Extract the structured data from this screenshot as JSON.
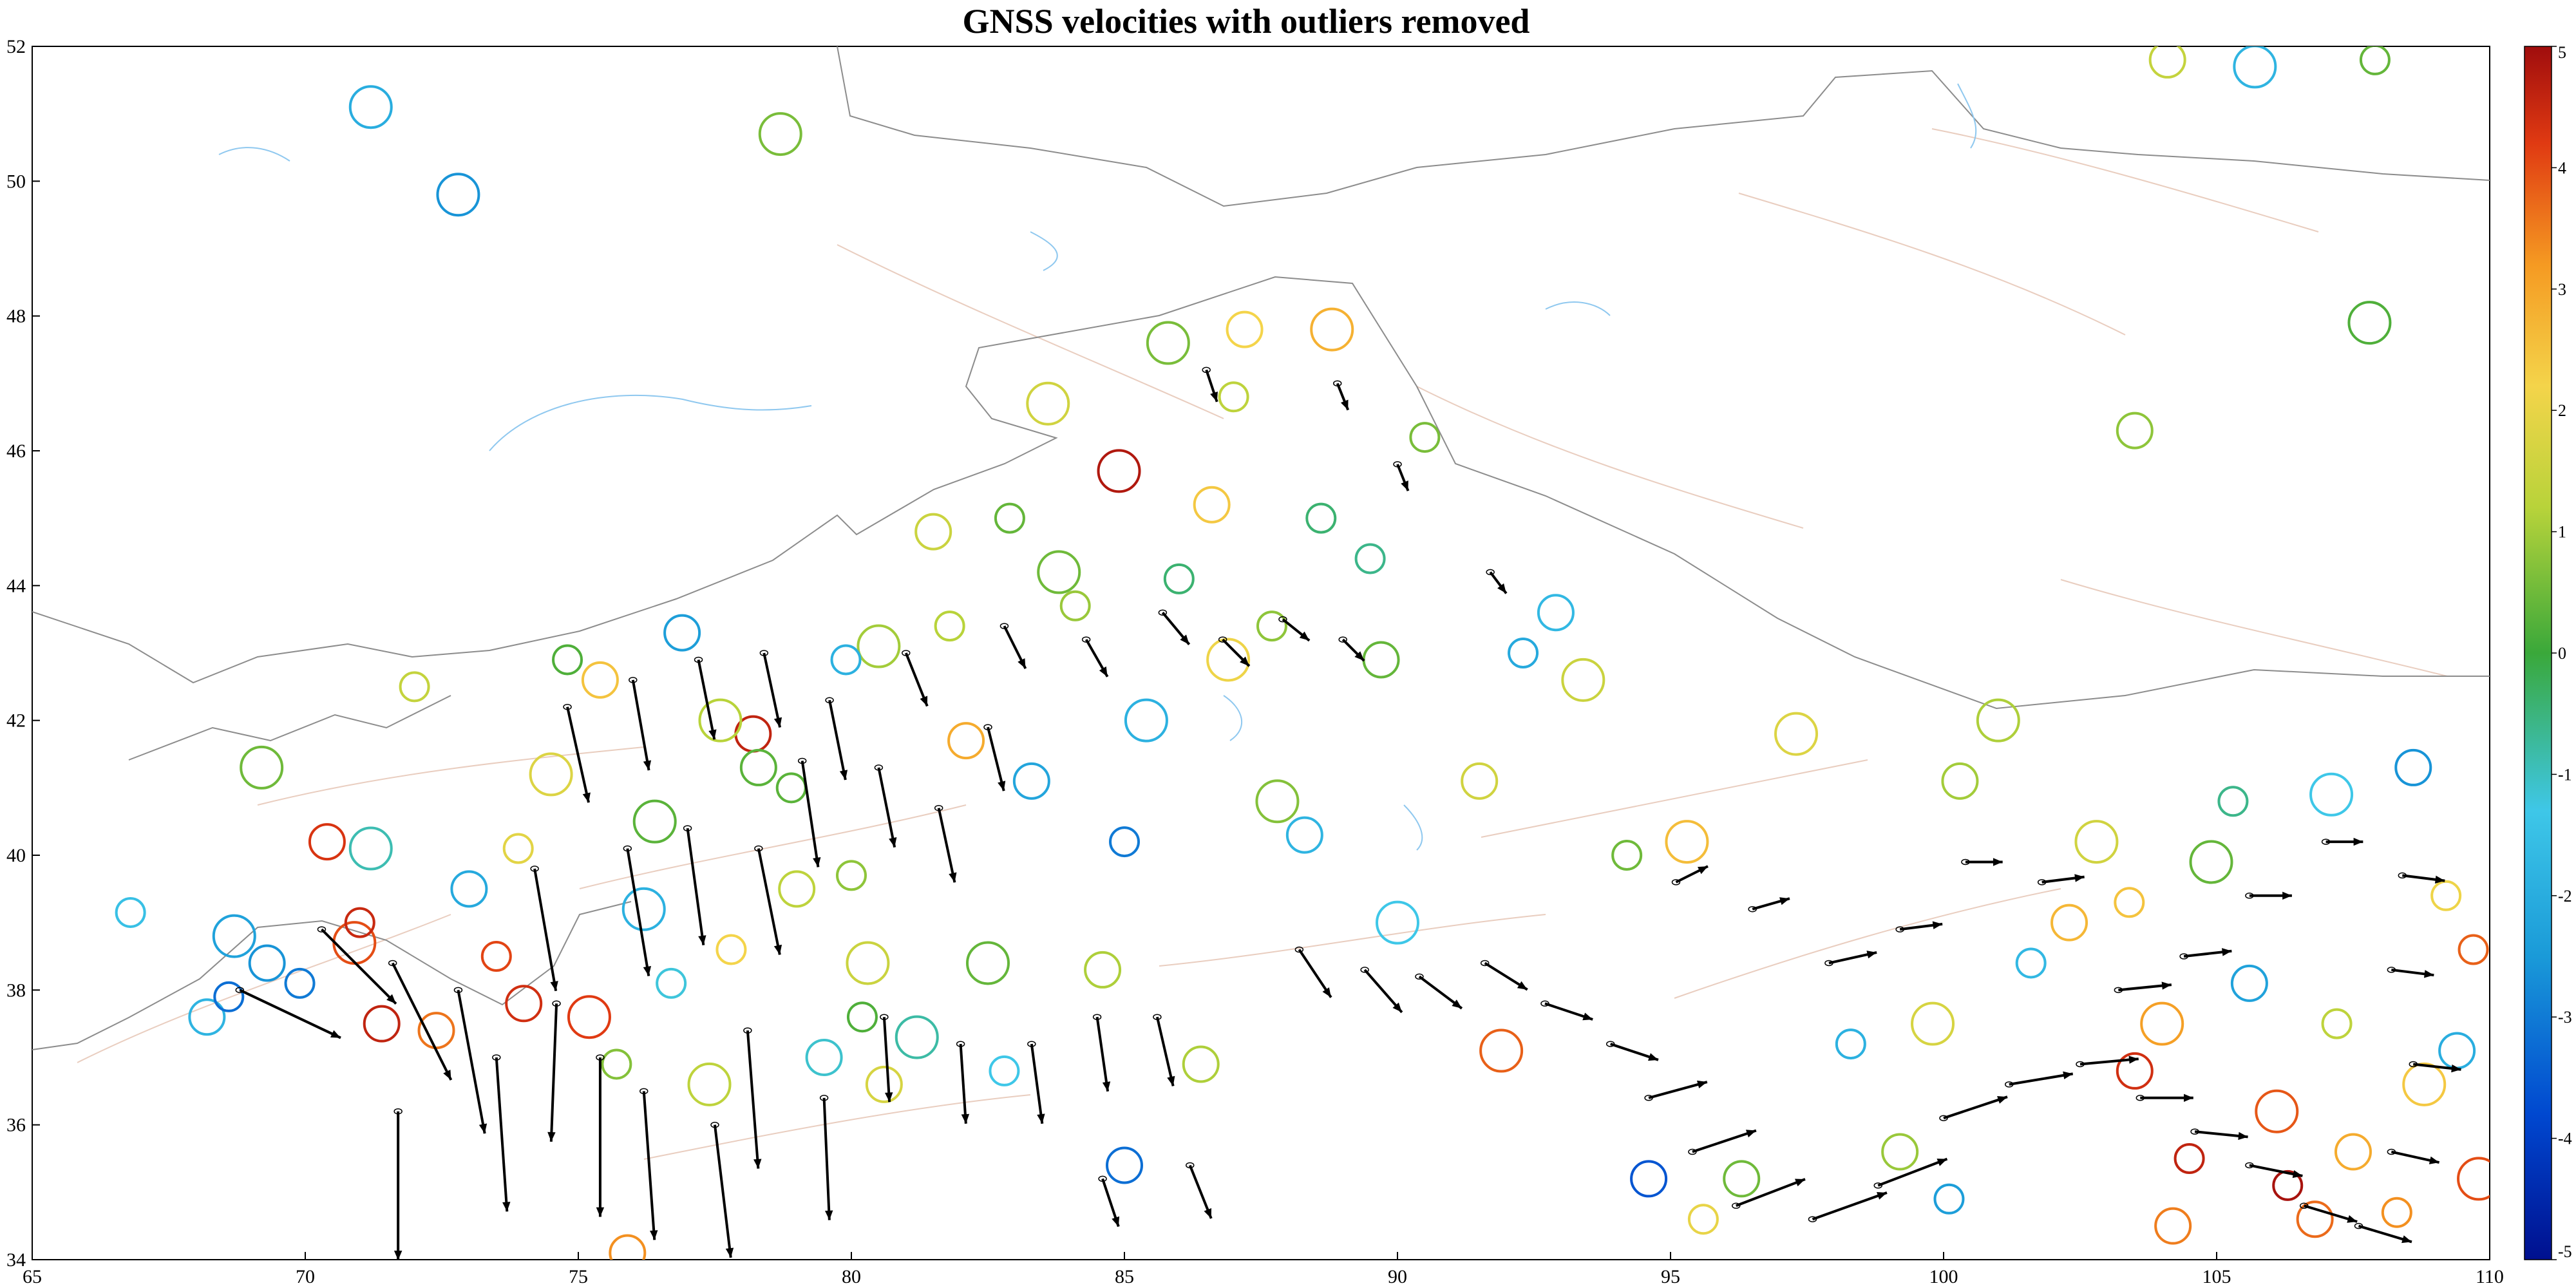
{
  "title": "GNSS velocities with outliers removed",
  "map": {
    "lon_range": [
      65,
      110
    ],
    "lat_range": [
      34,
      52
    ],
    "x_ticks": [
      "65",
      "70",
      "75",
      "80",
      "85",
      "90",
      "95",
      "100",
      "105",
      "110"
    ],
    "y_ticks": [
      "34",
      "36",
      "38",
      "40",
      "42",
      "44",
      "46",
      "48",
      "50",
      "52"
    ],
    "colors": {
      "border": "#8c8c8c",
      "water": "#8fc8ef",
      "fault": "#e7c8b8",
      "arrow": "#000000"
    }
  },
  "colorbar": {
    "range": [
      -5,
      5
    ],
    "labels": [
      "5",
      "4",
      "3",
      "2",
      "1",
      "0",
      "-1",
      "-2",
      "-3",
      "-4",
      "-5"
    ],
    "colormap": "jet-like: dark blue (-5) → cyan → green (0) → yellow → orange → dark red (5)"
  },
  "chart_data": {
    "type": "scatter",
    "title": "GNSS velocities with outliers removed",
    "xlim": [
      65,
      110
    ],
    "ylim": [
      34,
      52
    ],
    "colorbar_range": [
      -5,
      5
    ],
    "stations": [
      {
        "lon": 66.8,
        "lat": 39.15,
        "v": -1.5
      },
      {
        "lon": 68.2,
        "lat": 37.6,
        "v": -1.8
      },
      {
        "lon": 68.7,
        "lat": 38.8,
        "v": -2.3
      },
      {
        "lon": 68.6,
        "lat": 37.9,
        "v": -3.2
      },
      {
        "lon": 69.3,
        "lat": 38.4,
        "v": -2.6
      },
      {
        "lon": 69.2,
        "lat": 41.3,
        "v": 0.5
      },
      {
        "lon": 69.9,
        "lat": 38.1,
        "v": -3.0
      },
      {
        "lon": 70.4,
        "lat": 40.2,
        "v": 4.3
      },
      {
        "lon": 70.9,
        "lat": 38.7,
        "v": 4.0
      },
      {
        "lon": 71.0,
        "lat": 39.0,
        "v": 4.5
      },
      {
        "lon": 71.4,
        "lat": 37.5,
        "v": 4.6
      },
      {
        "lon": 71.2,
        "lat": 51.1,
        "v": -2.0
      },
      {
        "lon": 72.0,
        "lat": 42.5,
        "v": 1.4
      },
      {
        "lon": 72.4,
        "lat": 37.4,
        "v": 3.6
      },
      {
        "lon": 72.8,
        "lat": 49.8,
        "v": -2.6
      },
      {
        "lon": 73.5,
        "lat": 38.5,
        "v": 4.1
      },
      {
        "lon": 74.0,
        "lat": 37.8,
        "v": 4.4
      },
      {
        "lon": 74.5,
        "lat": 41.2,
        "v": 1.8
      },
      {
        "lon": 74.8,
        "lat": 42.9,
        "v": 0.2
      },
      {
        "lon": 75.4,
        "lat": 42.6,
        "v": 2.5
      },
      {
        "lon": 75.2,
        "lat": 37.6,
        "v": 4.2
      },
      {
        "lon": 75.7,
        "lat": 36.9,
        "v": 0.7
      },
      {
        "lon": 75.9,
        "lat": 34.1,
        "v": 3.3
      },
      {
        "lon": 76.2,
        "lat": 39.2,
        "v": -1.9
      },
      {
        "lon": 76.7,
        "lat": 38.1,
        "v": -1.2
      },
      {
        "lon": 76.9,
        "lat": 43.3,
        "v": -2.4
      },
      {
        "lon": 77.4,
        "lat": 36.6,
        "v": 1.3
      },
      {
        "lon": 77.8,
        "lat": 38.6,
        "v": 2.2
      },
      {
        "lon": 78.2,
        "lat": 41.8,
        "v": 4.6
      },
      {
        "lon": 78.7,
        "lat": 50.7,
        "v": 0.6
      },
      {
        "lon": 78.9,
        "lat": 41.0,
        "v": 0.3
      },
      {
        "lon": 79.5,
        "lat": 37.0,
        "v": -1.1
      },
      {
        "lon": 80.3,
        "lat": 38.4,
        "v": 1.5
      },
      {
        "lon": 80.2,
        "lat": 37.6,
        "v": 0.2
      },
      {
        "lon": 80.6,
        "lat": 36.6,
        "v": 1.7
      },
      {
        "lon": 81.2,
        "lat": 37.3,
        "v": -0.8
      },
      {
        "lon": 81.8,
        "lat": 43.4,
        "v": 1.2
      },
      {
        "lon": 82.1,
        "lat": 41.7,
        "v": 2.9
      },
      {
        "lon": 82.5,
        "lat": 38.4,
        "v": 0.4
      },
      {
        "lon": 82.8,
        "lat": 36.8,
        "v": -1.3
      },
      {
        "lon": 83.3,
        "lat": 41.1,
        "v": -2.2
      },
      {
        "lon": 83.8,
        "lat": 44.2,
        "v": 0.5
      },
      {
        "lon": 84.1,
        "lat": 43.7,
        "v": 0.9
      },
      {
        "lon": 84.6,
        "lat": 38.3,
        "v": 1.1
      },
      {
        "lon": 84.9,
        "lat": 45.7,
        "v": 4.8
      },
      {
        "lon": 85.0,
        "lat": 40.2,
        "v": -3.0
      },
      {
        "lon": 85.0,
        "lat": 35.4,
        "v": -3.2
      },
      {
        "lon": 85.4,
        "lat": 42.0,
        "v": -1.9
      },
      {
        "lon": 86.0,
        "lat": 44.1,
        "v": -0.4
      },
      {
        "lon": 86.4,
        "lat": 36.9,
        "v": 1.1
      },
      {
        "lon": 86.9,
        "lat": 42.9,
        "v": 2.1
      },
      {
        "lon": 87.7,
        "lat": 43.4,
        "v": 0.8
      },
      {
        "lon": 87.2,
        "lat": 47.8,
        "v": 2.2
      },
      {
        "lon": 87.8,
        "lat": 40.8,
        "v": 0.7
      },
      {
        "lon": 88.6,
        "lat": 45.0,
        "v": -0.4
      },
      {
        "lon": 88.3,
        "lat": 40.3,
        "v": -1.8
      },
      {
        "lon": 88.8,
        "lat": 47.8,
        "v": 2.8
      },
      {
        "lon": 89.5,
        "lat": 44.4,
        "v": -0.6
      },
      {
        "lon": 89.7,
        "lat": 42.9,
        "v": 0.4
      },
      {
        "lon": 90.0,
        "lat": 39.0,
        "v": -1.3
      },
      {
        "lon": 90.5,
        "lat": 46.2,
        "v": 0.6
      },
      {
        "lon": 91.5,
        "lat": 41.1,
        "v": 1.6
      },
      {
        "lon": 91.9,
        "lat": 37.1,
        "v": 3.8
      },
      {
        "lon": 92.3,
        "lat": 43.0,
        "v": -2.1
      },
      {
        "lon": 92.9,
        "lat": 43.6,
        "v": -1.7
      },
      {
        "lon": 93.4,
        "lat": 42.6,
        "v": 1.5
      },
      {
        "lon": 94.2,
        "lat": 40.0,
        "v": 0.5
      },
      {
        "lon": 94.6,
        "lat": 35.2,
        "v": -3.6
      },
      {
        "lon": 95.3,
        "lat": 40.2,
        "v": 2.6
      },
      {
        "lon": 95.6,
        "lat": 34.6,
        "v": 2.0
      },
      {
        "lon": 96.3,
        "lat": 35.2,
        "v": 0.5
      },
      {
        "lon": 97.3,
        "lat": 41.8,
        "v": 1.8
      },
      {
        "lon": 98.3,
        "lat": 37.2,
        "v": -1.9
      },
      {
        "lon": 99.2,
        "lat": 35.6,
        "v": 0.9
      },
      {
        "lon": 99.8,
        "lat": 37.5,
        "v": 1.7
      },
      {
        "lon": 100.1,
        "lat": 34.9,
        "v": -2.4
      },
      {
        "lon": 100.3,
        "lat": 41.1,
        "v": 1.0
      },
      {
        "lon": 101.0,
        "lat": 42.0,
        "v": 1.1
      },
      {
        "lon": 101.6,
        "lat": 38.4,
        "v": -1.7
      },
      {
        "lon": 102.3,
        "lat": 39.0,
        "v": 2.7
      },
      {
        "lon": 102.8,
        "lat": 40.2,
        "v": 1.6
      },
      {
        "lon": 103.4,
        "lat": 39.3,
        "v": 2.5
      },
      {
        "lon": 103.5,
        "lat": 36.8,
        "v": 4.4
      },
      {
        "lon": 104.0,
        "lat": 37.5,
        "v": 3.1
      },
      {
        "lon": 104.5,
        "lat": 35.5,
        "v": 4.6
      },
      {
        "lon": 104.2,
        "lat": 34.5,
        "v": 3.5
      },
      {
        "lon": 104.9,
        "lat": 39.9,
        "v": 0.4
      },
      {
        "lon": 105.3,
        "lat": 40.8,
        "v": -0.6
      },
      {
        "lon": 105.6,
        "lat": 38.1,
        "v": -2.3
      },
      {
        "lon": 106.1,
        "lat": 36.2,
        "v": 3.9
      },
      {
        "lon": 106.3,
        "lat": 35.1,
        "v": 4.9
      },
      {
        "lon": 106.8,
        "lat": 34.6,
        "v": 3.7
      },
      {
        "lon": 107.1,
        "lat": 40.9,
        "v": -1.3
      },
      {
        "lon": 107.2,
        "lat": 37.5,
        "v": 1.3
      },
      {
        "lon": 107.5,
        "lat": 35.6,
        "v": 2.9
      },
      {
        "lon": 107.8,
        "lat": 47.9,
        "v": 0.2
      },
      {
        "lon": 108.3,
        "lat": 34.7,
        "v": 3.3
      },
      {
        "lon": 108.6,
        "lat": 41.3,
        "v": -2.6
      },
      {
        "lon": 108.8,
        "lat": 36.6,
        "v": 2.4
      },
      {
        "lon": 109.2,
        "lat": 39.4,
        "v": 2.1
      },
      {
        "lon": 109.4,
        "lat": 37.1,
        "v": -2.0
      },
      {
        "lon": 109.8,
        "lat": 35.2,
        "v": 4.0
      },
      {
        "lon": 109.7,
        "lat": 38.6,
        "v": 3.8
      },
      {
        "lon": 104.1,
        "lat": 51.8,
        "v": 1.4
      },
      {
        "lon": 105.7,
        "lat": 51.7,
        "v": -1.8
      },
      {
        "lon": 107.9,
        "lat": 51.8,
        "v": 0.4
      },
      {
        "lon": 103.5,
        "lat": 46.3,
        "v": 0.8
      },
      {
        "lon": 85.8,
        "lat": 47.6,
        "v": 0.6
      },
      {
        "lon": 87.0,
        "lat": 46.8,
        "v": 1.3
      },
      {
        "lon": 86.6,
        "lat": 45.2,
        "v": 2.4
      },
      {
        "lon": 83.6,
        "lat": 46.7,
        "v": 1.6
      },
      {
        "lon": 82.9,
        "lat": 45.0,
        "v": 0.4
      },
      {
        "lon": 81.5,
        "lat": 44.8,
        "v": 1.5
      },
      {
        "lon": 80.5,
        "lat": 43.1,
        "v": 1.0
      },
      {
        "lon": 79.9,
        "lat": 42.9,
        "v": -1.9
      },
      {
        "lon": 78.3,
        "lat": 41.3,
        "v": 0.3
      },
      {
        "lon": 77.6,
        "lat": 42.0,
        "v": 1.2
      },
      {
        "lon": 80.0,
        "lat": 39.7,
        "v": 0.8
      },
      {
        "lon": 79.0,
        "lat": 39.5,
        "v": 1.3
      },
      {
        "lon": 76.4,
        "lat": 40.5,
        "v": 0.3
      },
      {
        "lon": 73.9,
        "lat": 40.1,
        "v": 1.9
      },
      {
        "lon": 73.0,
        "lat": 39.5,
        "v": -2.1
      },
      {
        "lon": 71.2,
        "lat": 40.1,
        "v": -0.9
      }
    ],
    "arrows": [
      {
        "lon": 68.8,
        "lat": 38.0,
        "dlon": 1.9,
        "dlat": -0.9
      },
      {
        "lon": 70.3,
        "lat": 38.9,
        "dlon": 1.4,
        "dlat": -1.4
      },
      {
        "lon": 71.6,
        "lat": 38.4,
        "dlon": 1.1,
        "dlat": -2.2
      },
      {
        "lon": 72.8,
        "lat": 38.0,
        "dlon": 0.5,
        "dlat": -2.7
      },
      {
        "lon": 71.7,
        "lat": 36.2,
        "dlon": 0.0,
        "dlat": -2.8
      },
      {
        "lon": 73.5,
        "lat": 37.0,
        "dlon": 0.2,
        "dlat": -2.9
      },
      {
        "lon": 74.6,
        "lat": 37.8,
        "dlon": -0.1,
        "dlat": -2.6
      },
      {
        "lon": 75.4,
        "lat": 37.0,
        "dlon": 0.0,
        "dlat": -3.0
      },
      {
        "lon": 76.2,
        "lat": 36.5,
        "dlon": 0.2,
        "dlat": -2.8
      },
      {
        "lon": 77.5,
        "lat": 36.0,
        "dlon": 0.3,
        "dlat": -2.5
      },
      {
        "lon": 78.1,
        "lat": 37.4,
        "dlon": 0.2,
        "dlat": -2.6
      },
      {
        "lon": 79.5,
        "lat": 36.4,
        "dlon": 0.1,
        "dlat": -2.3
      },
      {
        "lon": 74.2,
        "lat": 39.8,
        "dlon": 0.4,
        "dlat": -2.3
      },
      {
        "lon": 75.9,
        "lat": 40.1,
        "dlon": 0.4,
        "dlat": -2.4
      },
      {
        "lon": 77.0,
        "lat": 40.4,
        "dlon": 0.3,
        "dlat": -2.2
      },
      {
        "lon": 78.3,
        "lat": 40.1,
        "dlon": 0.4,
        "dlat": -2.0
      },
      {
        "lon": 79.1,
        "lat": 41.4,
        "dlon": 0.3,
        "dlat": -2.0
      },
      {
        "lon": 74.8,
        "lat": 42.2,
        "dlon": 0.4,
        "dlat": -1.8
      },
      {
        "lon": 76.0,
        "lat": 42.6,
        "dlon": 0.3,
        "dlat": -1.7
      },
      {
        "lon": 77.2,
        "lat": 42.9,
        "dlon": 0.3,
        "dlat": -1.5
      },
      {
        "lon": 78.4,
        "lat": 43.0,
        "dlon": 0.3,
        "dlat": -1.4
      },
      {
        "lon": 79.6,
        "lat": 42.3,
        "dlon": 0.3,
        "dlat": -1.5
      },
      {
        "lon": 80.5,
        "lat": 41.3,
        "dlon": 0.3,
        "dlat": -1.5
      },
      {
        "lon": 81.6,
        "lat": 40.7,
        "dlon": 0.3,
        "dlat": -1.4
      },
      {
        "lon": 82.5,
        "lat": 41.9,
        "dlon": 0.3,
        "dlat": -1.2
      },
      {
        "lon": 81.0,
        "lat": 43.0,
        "dlon": 0.4,
        "dlat": -1.0
      },
      {
        "lon": 82.8,
        "lat": 43.4,
        "dlon": 0.4,
        "dlat": -0.8
      },
      {
        "lon": 84.3,
        "lat": 43.2,
        "dlon": 0.4,
        "dlat": -0.7
      },
      {
        "lon": 85.7,
        "lat": 43.6,
        "dlon": 0.5,
        "dlat": -0.6
      },
      {
        "lon": 86.8,
        "lat": 43.2,
        "dlon": 0.5,
        "dlat": -0.5
      },
      {
        "lon": 87.9,
        "lat": 43.5,
        "dlon": 0.5,
        "dlat": -0.4
      },
      {
        "lon": 89.0,
        "lat": 43.2,
        "dlon": 0.4,
        "dlat": -0.4
      },
      {
        "lon": 80.6,
        "lat": 37.6,
        "dlon": 0.1,
        "dlat": -1.6
      },
      {
        "lon": 82.0,
        "lat": 37.2,
        "dlon": 0.1,
        "dlat": -1.5
      },
      {
        "lon": 83.3,
        "lat": 37.2,
        "dlon": 0.2,
        "dlat": -1.5
      },
      {
        "lon": 84.5,
        "lat": 37.6,
        "dlon": 0.2,
        "dlat": -1.4
      },
      {
        "lon": 85.6,
        "lat": 37.6,
        "dlon": 0.3,
        "dlat": -1.3
      },
      {
        "lon": 86.2,
        "lat": 35.4,
        "dlon": 0.4,
        "dlat": -1.0
      },
      {
        "lon": 84.6,
        "lat": 35.2,
        "dlon": 0.3,
        "dlat": -0.9
      },
      {
        "lon": 88.2,
        "lat": 38.6,
        "dlon": 0.6,
        "dlat": -0.9
      },
      {
        "lon": 89.4,
        "lat": 38.3,
        "dlon": 0.7,
        "dlat": -0.8
      },
      {
        "lon": 90.4,
        "lat": 38.2,
        "dlon": 0.8,
        "dlat": -0.6
      },
      {
        "lon": 91.6,
        "lat": 38.4,
        "dlon": 0.8,
        "dlat": -0.5
      },
      {
        "lon": 92.7,
        "lat": 37.8,
        "dlon": 0.9,
        "dlat": -0.3
      },
      {
        "lon": 93.9,
        "lat": 37.2,
        "dlon": 0.9,
        "dlat": -0.3
      },
      {
        "lon": 94.6,
        "lat": 36.4,
        "dlon": 1.1,
        "dlat": 0.3
      },
      {
        "lon": 95.4,
        "lat": 35.6,
        "dlon": 1.2,
        "dlat": 0.4
      },
      {
        "lon": 96.2,
        "lat": 34.8,
        "dlon": 1.3,
        "dlat": 0.5
      },
      {
        "lon": 97.6,
        "lat": 34.6,
        "dlon": 1.4,
        "dlat": 0.5
      },
      {
        "lon": 98.8,
        "lat": 35.1,
        "dlon": 1.3,
        "dlat": 0.5
      },
      {
        "lon": 100.0,
        "lat": 36.1,
        "dlon": 1.2,
        "dlat": 0.4
      },
      {
        "lon": 101.2,
        "lat": 36.6,
        "dlon": 1.2,
        "dlat": 0.2
      },
      {
        "lon": 102.5,
        "lat": 36.9,
        "dlon": 1.1,
        "dlat": 0.1
      },
      {
        "lon": 103.6,
        "lat": 36.4,
        "dlon": 1.0,
        "dlat": 0.0
      },
      {
        "lon": 104.6,
        "lat": 35.9,
        "dlon": 1.0,
        "dlat": -0.1
      },
      {
        "lon": 105.6,
        "lat": 35.4,
        "dlon": 1.0,
        "dlat": -0.2
      },
      {
        "lon": 106.6,
        "lat": 34.8,
        "dlon": 1.0,
        "dlat": -0.3
      },
      {
        "lon": 107.6,
        "lat": 34.5,
        "dlon": 1.0,
        "dlat": -0.3
      },
      {
        "lon": 108.2,
        "lat": 35.6,
        "dlon": 0.9,
        "dlat": -0.2
      },
      {
        "lon": 108.6,
        "lat": 36.9,
        "dlon": 0.9,
        "dlat": -0.1
      },
      {
        "lon": 108.2,
        "lat": 38.3,
        "dlon": 0.8,
        "dlat": -0.1
      },
      {
        "lon": 108.4,
        "lat": 39.7,
        "dlon": 0.8,
        "dlat": -0.1
      },
      {
        "lon": 107.0,
        "lat": 40.2,
        "dlon": 0.7,
        "dlat": 0.0
      },
      {
        "lon": 105.6,
        "lat": 39.4,
        "dlon": 0.8,
        "dlat": 0.0
      },
      {
        "lon": 104.4,
        "lat": 38.5,
        "dlon": 0.9,
        "dlat": 0.1
      },
      {
        "lon": 103.2,
        "lat": 38.0,
        "dlon": 1.0,
        "dlat": 0.1
      },
      {
        "lon": 101.8,
        "lat": 39.6,
        "dlon": 0.8,
        "dlat": 0.1
      },
      {
        "lon": 100.4,
        "lat": 39.9,
        "dlon": 0.7,
        "dlat": 0.0
      },
      {
        "lon": 99.2,
        "lat": 38.9,
        "dlon": 0.8,
        "dlat": 0.1
      },
      {
        "lon": 97.9,
        "lat": 38.4,
        "dlon": 0.9,
        "dlat": 0.2
      },
      {
        "lon": 96.5,
        "lat": 39.2,
        "dlon": 0.7,
        "dlat": 0.2
      },
      {
        "lon": 95.1,
        "lat": 39.6,
        "dlon": 0.6,
        "dlat": 0.3
      },
      {
        "lon": 86.5,
        "lat": 47.2,
        "dlon": 0.2,
        "dlat": -0.6
      },
      {
        "lon": 88.9,
        "lat": 47.0,
        "dlon": 0.2,
        "dlat": -0.5
      },
      {
        "lon": 90.0,
        "lat": 45.8,
        "dlon": 0.2,
        "dlat": -0.5
      },
      {
        "lon": 91.7,
        "lat": 44.2,
        "dlon": 0.3,
        "dlat": -0.4
      }
    ]
  }
}
